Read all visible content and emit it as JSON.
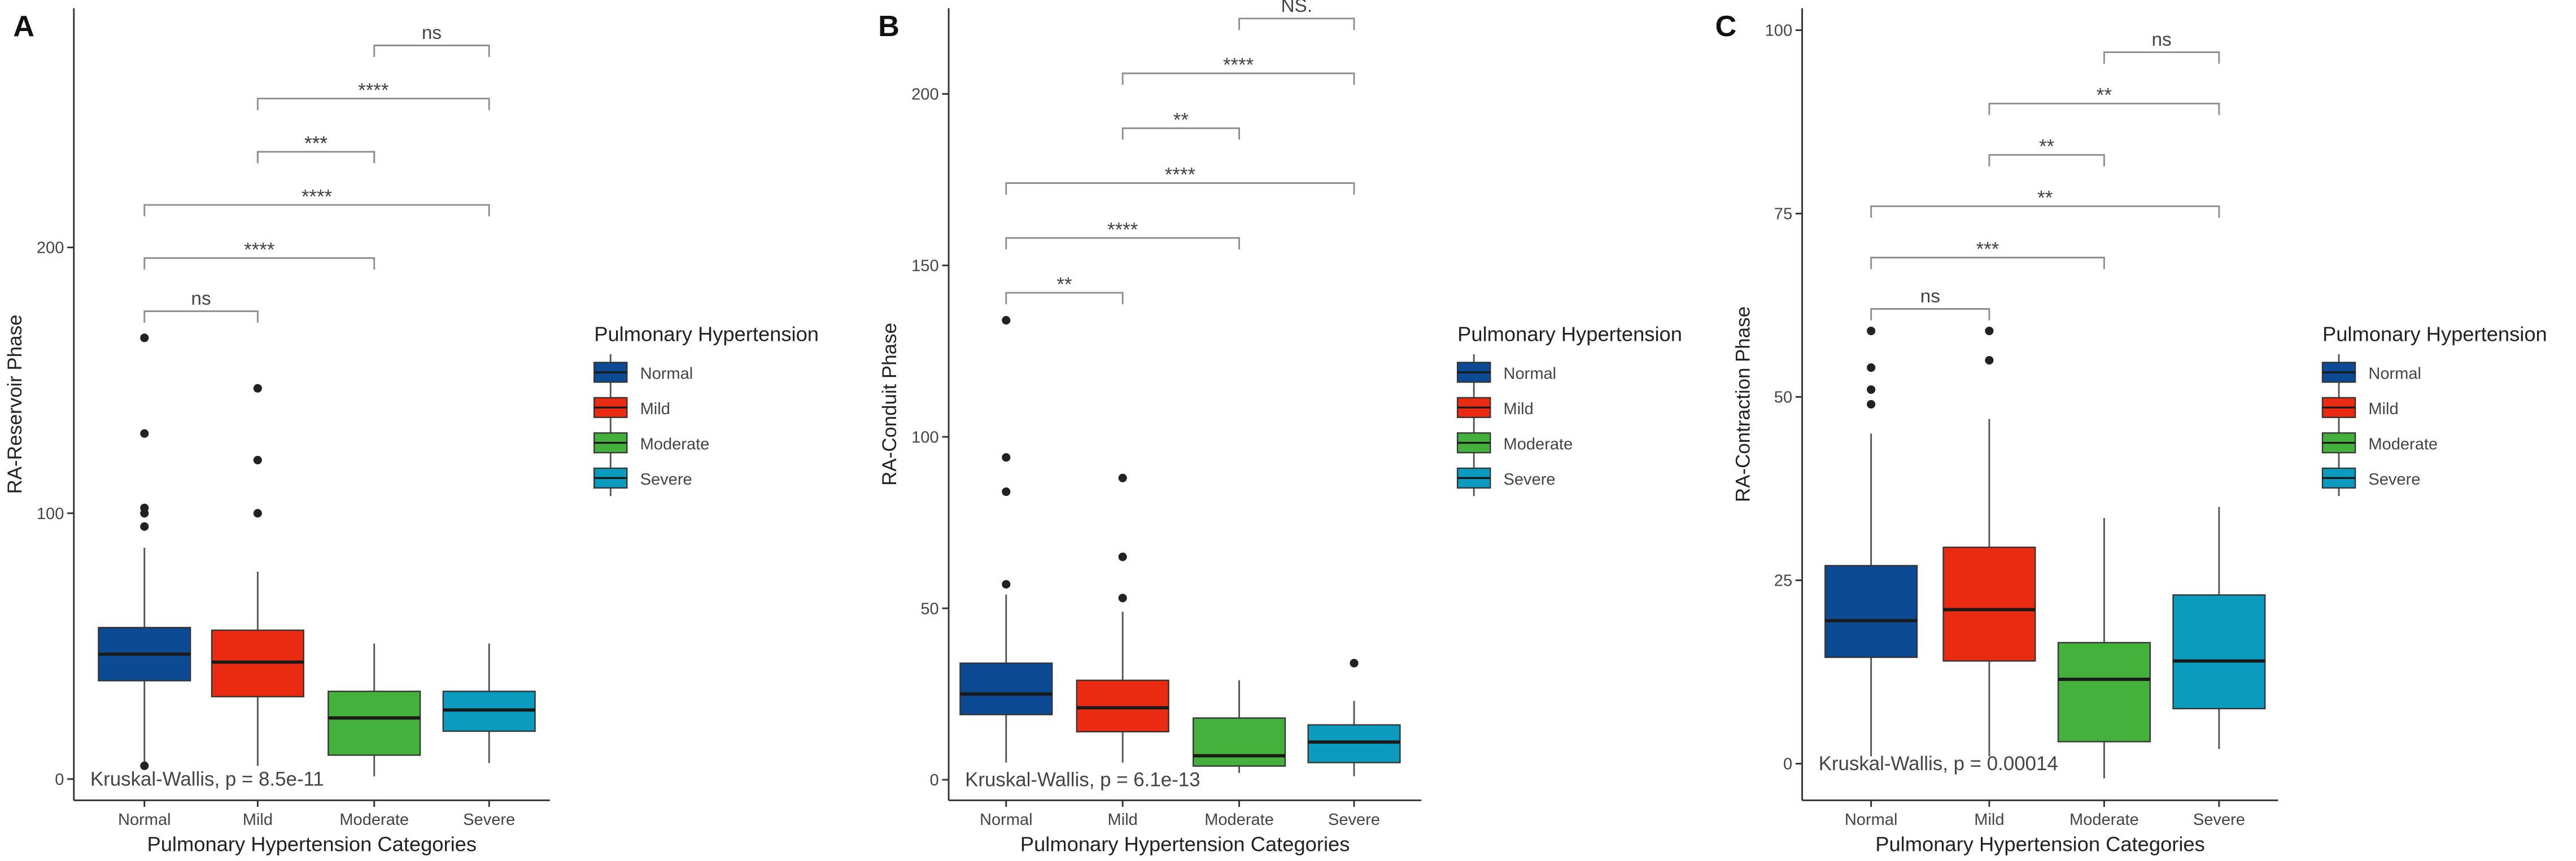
{
  "chart_data": [
    {
      "type": "boxplot",
      "panel_label": "A",
      "xlabel": "Pulmonary Hypertension Categories",
      "ylabel": "RA-Reservoir Phase",
      "categories": [
        "Normal",
        "Mild",
        "Moderate",
        "Severe"
      ],
      "ylim": [
        -8,
        290
      ],
      "yticks": [
        0,
        100,
        200
      ],
      "boxes": [
        {
          "min": 5,
          "q1": 37,
          "median": 47,
          "q3": 57,
          "max": 87,
          "outliers": [
            5,
            95,
            100,
            102,
            130,
            166
          ]
        },
        {
          "min": 5,
          "q1": 31,
          "median": 44,
          "q3": 56,
          "max": 78,
          "outliers": [
            100,
            120,
            147
          ]
        },
        {
          "min": 1,
          "q1": 9,
          "median": 23,
          "q3": 33,
          "max": 51,
          "outliers": []
        },
        {
          "min": 6,
          "q1": 18,
          "median": 26,
          "q3": 33,
          "max": 51,
          "outliers": []
        }
      ],
      "comparisons": [
        {
          "groups": [
            0,
            1
          ],
          "label": "ns",
          "y": 176
        },
        {
          "groups": [
            0,
            2
          ],
          "label": "****",
          "y": 196
        },
        {
          "groups": [
            0,
            3
          ],
          "label": "****",
          "y": 216
        },
        {
          "groups": [
            1,
            2
          ],
          "label": "***",
          "y": 236
        },
        {
          "groups": [
            1,
            2
          ],
          "label": "***",
          "y": 236
        },
        {
          "groups": [
            1,
            3
          ],
          "label": "****",
          "y": 256
        },
        {
          "groups": [
            2,
            3
          ],
          "label": "ns",
          "y": 276
        }
      ],
      "test_text": "Kruskal-Wallis, p = 8.5e-11",
      "test_text_y": 0
    },
    {
      "type": "boxplot",
      "panel_label": "B",
      "xlabel": "Pulmonary Hypertension Categories",
      "ylabel": "RA-Conduit Phase",
      "categories": [
        "Normal",
        "Mild",
        "Moderate",
        "Severe"
      ],
      "ylim": [
        -6,
        225
      ],
      "yticks": [
        0,
        50,
        100,
        150,
        200
      ],
      "boxes": [
        {
          "min": 5,
          "q1": 19,
          "median": 25,
          "q3": 34,
          "max": 54,
          "outliers": [
            57,
            84,
            94,
            134
          ]
        },
        {
          "min": 5,
          "q1": 14,
          "median": 21,
          "q3": 29,
          "max": 49,
          "outliers": [
            53,
            65,
            88
          ]
        },
        {
          "min": 2,
          "q1": 4,
          "median": 7,
          "q3": 18,
          "max": 29,
          "outliers": []
        },
        {
          "min": 1,
          "q1": 5,
          "median": 11,
          "q3": 16,
          "max": 23,
          "outliers": [
            34
          ]
        }
      ],
      "comparisons": [
        {
          "groups": [
            0,
            1
          ],
          "label": "**",
          "y": 142
        },
        {
          "groups": [
            0,
            2
          ],
          "label": "****",
          "y": 158
        },
        {
          "groups": [
            0,
            3
          ],
          "label": "****",
          "y": 174
        },
        {
          "groups": [
            1,
            2
          ],
          "label": "**",
          "y": 190
        },
        {
          "groups": [
            1,
            3
          ],
          "label": "****",
          "y": 206
        },
        {
          "groups": [
            2,
            3
          ],
          "label": "NS.",
          "y": 222
        }
      ],
      "test_text": "Kruskal-Wallis, p = 6.1e-13",
      "test_text_y": 0
    },
    {
      "type": "boxplot",
      "panel_label": "C",
      "xlabel": "Pulmonary Hypertension Categories",
      "ylabel": "RA-Contraction Phase",
      "categories": [
        "Normal",
        "Mild",
        "Moderate",
        "Severe"
      ],
      "ylim": [
        -5,
        103
      ],
      "yticks": [
        0,
        25,
        50,
        75,
        100
      ],
      "boxes": [
        {
          "min": 1,
          "q1": 14.5,
          "median": 19.5,
          "q3": 27,
          "max": 45,
          "outliers": [
            49,
            51,
            54,
            59
          ]
        },
        {
          "min": 1,
          "q1": 14,
          "median": 21,
          "q3": 29.5,
          "max": 47,
          "outliers": [
            55,
            59
          ]
        },
        {
          "min": -2,
          "q1": 3,
          "median": 11.5,
          "q3": 16.5,
          "max": 33.5,
          "outliers": []
        },
        {
          "min": 2,
          "q1": 7.5,
          "median": 14,
          "q3": 23,
          "max": 35,
          "outliers": []
        }
      ],
      "comparisons": [
        {
          "groups": [
            0,
            1
          ],
          "label": "ns",
          "y": 62
        },
        {
          "groups": [
            0,
            2
          ],
          "label": "***",
          "y": 69
        },
        {
          "groups": [
            0,
            3
          ],
          "label": "**",
          "y": 76
        },
        {
          "groups": [
            1,
            2
          ],
          "label": "**",
          "y": 83
        },
        {
          "groups": [
            1,
            3
          ],
          "label": "**",
          "y": 90
        },
        {
          "groups": [
            2,
            3
          ],
          "label": "ns",
          "y": 97
        }
      ],
      "test_text": "Kruskal-Wallis, p = 0.00014",
      "test_text_y": 0
    }
  ],
  "legend": {
    "title": "Pulmonary Hypertension",
    "entries": [
      {
        "label": "Normal",
        "color": "#0c4a93"
      },
      {
        "label": "Mild",
        "color": "#ea2a11"
      },
      {
        "label": "Moderate",
        "color": "#45b13d"
      },
      {
        "label": "Severe",
        "color": "#0b9bbf"
      }
    ]
  },
  "colors": {
    "axis": "#333333",
    "bracket": "#8f8f8f",
    "whisker": "#555555",
    "outlier": "#222222",
    "median": "#1a1a1a",
    "text": "#444444"
  }
}
